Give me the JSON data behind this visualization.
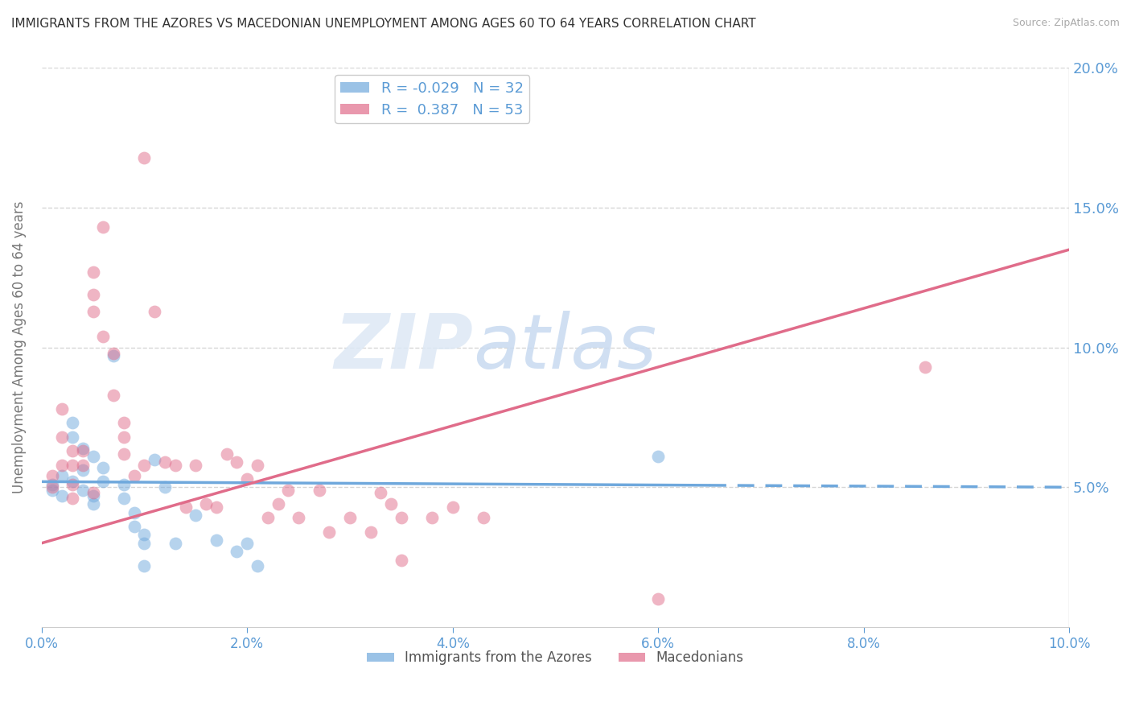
{
  "title": "IMMIGRANTS FROM THE AZORES VS MACEDONIAN UNEMPLOYMENT AMONG AGES 60 TO 64 YEARS CORRELATION CHART",
  "source": "Source: ZipAtlas.com",
  "ylabel": "Unemployment Among Ages 60 to 64 years",
  "xlabel": "",
  "xlim": [
    0.0,
    0.1
  ],
  "ylim": [
    0.0,
    0.2
  ],
  "yticks": [
    0.0,
    0.05,
    0.1,
    0.15,
    0.2
  ],
  "ytick_labels": [
    "",
    "5.0%",
    "10.0%",
    "15.0%",
    "20.0%"
  ],
  "xticks": [
    0.0,
    0.02,
    0.04,
    0.06,
    0.08,
    0.1
  ],
  "xtick_labels": [
    "0.0%",
    "2.0%",
    "4.0%",
    "6.0%",
    "8.0%",
    "10.0%"
  ],
  "series1_name": "Immigrants from the Azores",
  "series2_name": "Macedonians",
  "color1": "#6fa8dc",
  "color2": "#e06c8a",
  "title_color": "#333333",
  "axis_color": "#5b9bd5",
  "grid_color": "#cccccc",
  "watermark_text": "ZIP",
  "watermark_text2": "atlas",
  "background_color": "#ffffff",
  "trendline1_solid_end": 0.065,
  "trendline1_dashed_start": 0.065,
  "trendline1_y_intercept": 0.052,
  "trendline1_slope": -0.02,
  "trendline2_y_intercept": 0.03,
  "trendline2_slope": 1.05,
  "scatter1_x": [
    0.001,
    0.001,
    0.002,
    0.002,
    0.003,
    0.003,
    0.003,
    0.004,
    0.004,
    0.004,
    0.005,
    0.005,
    0.005,
    0.006,
    0.006,
    0.007,
    0.008,
    0.008,
    0.009,
    0.009,
    0.01,
    0.01,
    0.01,
    0.011,
    0.012,
    0.013,
    0.015,
    0.017,
    0.019,
    0.02,
    0.021,
    0.06
  ],
  "scatter1_y": [
    0.051,
    0.049,
    0.054,
    0.047,
    0.073,
    0.068,
    0.052,
    0.056,
    0.064,
    0.049,
    0.061,
    0.047,
    0.044,
    0.052,
    0.057,
    0.097,
    0.051,
    0.046,
    0.041,
    0.036,
    0.033,
    0.03,
    0.022,
    0.06,
    0.05,
    0.03,
    0.04,
    0.031,
    0.027,
    0.03,
    0.022,
    0.061
  ],
  "scatter2_x": [
    0.001,
    0.001,
    0.002,
    0.002,
    0.002,
    0.003,
    0.003,
    0.003,
    0.003,
    0.004,
    0.004,
    0.005,
    0.005,
    0.005,
    0.005,
    0.006,
    0.006,
    0.007,
    0.007,
    0.008,
    0.008,
    0.008,
    0.009,
    0.01,
    0.01,
    0.011,
    0.012,
    0.013,
    0.014,
    0.015,
    0.016,
    0.017,
    0.018,
    0.019,
    0.02,
    0.021,
    0.022,
    0.023,
    0.024,
    0.025,
    0.027,
    0.028,
    0.03,
    0.032,
    0.033,
    0.034,
    0.035,
    0.035,
    0.038,
    0.04,
    0.043,
    0.06,
    0.086
  ],
  "scatter2_y": [
    0.054,
    0.05,
    0.078,
    0.068,
    0.058,
    0.063,
    0.058,
    0.051,
    0.046,
    0.063,
    0.058,
    0.127,
    0.119,
    0.113,
    0.048,
    0.143,
    0.104,
    0.098,
    0.083,
    0.073,
    0.068,
    0.062,
    0.054,
    0.168,
    0.058,
    0.113,
    0.059,
    0.058,
    0.043,
    0.058,
    0.044,
    0.043,
    0.062,
    0.059,
    0.053,
    0.058,
    0.039,
    0.044,
    0.049,
    0.039,
    0.049,
    0.034,
    0.039,
    0.034,
    0.048,
    0.044,
    0.039,
    0.024,
    0.039,
    0.043,
    0.039,
    0.01,
    0.093
  ]
}
